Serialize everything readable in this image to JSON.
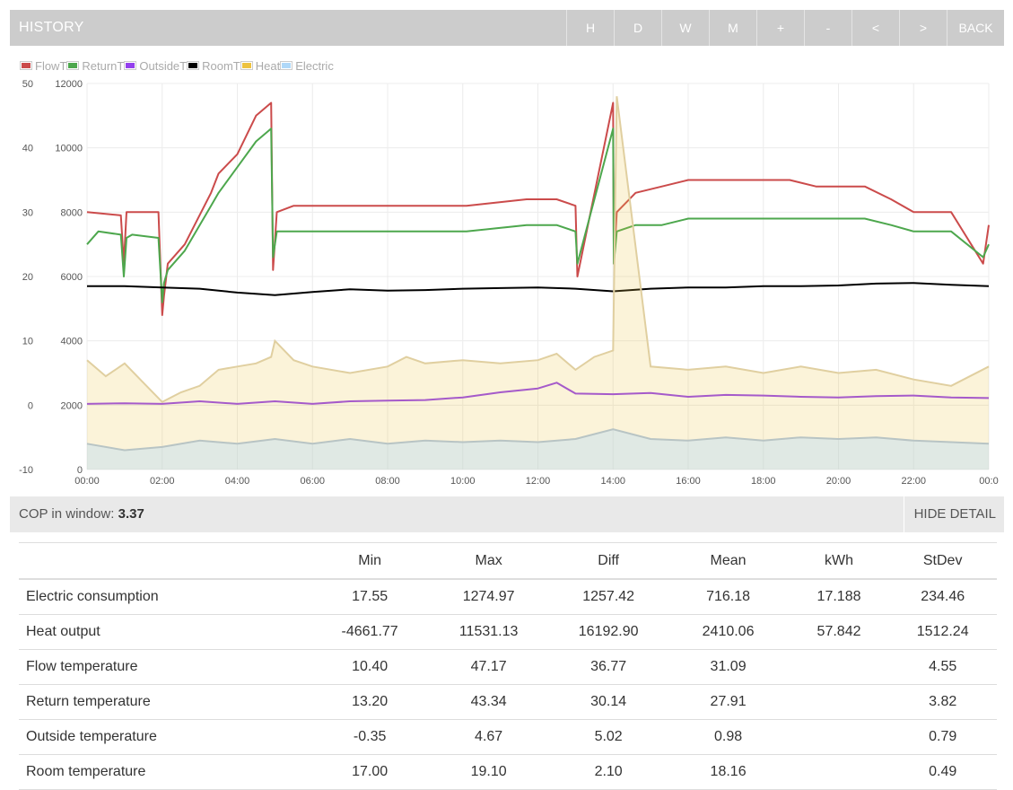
{
  "header": {
    "title": "HISTORY",
    "buttons": [
      {
        "id": "hour",
        "label": "H"
      },
      {
        "id": "day",
        "label": "D"
      },
      {
        "id": "week",
        "label": "W"
      },
      {
        "id": "month",
        "label": "M"
      },
      {
        "id": "zoom-in",
        "label": "+"
      },
      {
        "id": "zoom-out",
        "label": "-"
      },
      {
        "id": "pan-left",
        "label": "<"
      },
      {
        "id": "pan-right",
        "label": ">"
      },
      {
        "id": "back",
        "label": "BACK"
      }
    ]
  },
  "legend": [
    {
      "label": "FlowT",
      "color": "#cb4b4b"
    },
    {
      "label": "ReturnT",
      "color": "#4da74d"
    },
    {
      "label": "OutsideT",
      "color": "#9440ed"
    },
    {
      "label": "RoomT",
      "color": "#000000"
    },
    {
      "label": "Heat",
      "color": "#edc240"
    },
    {
      "label": "Electric",
      "color": "#afd8f8"
    }
  ],
  "chart_data": {
    "type": "line",
    "x_ticks": [
      "00:00",
      "02:00",
      "04:00",
      "06:00",
      "08:00",
      "10:00",
      "12:00",
      "14:00",
      "16:00",
      "18:00",
      "20:00",
      "22:00",
      "00:0"
    ],
    "x_hours": [
      0,
      2,
      4,
      6,
      8,
      10,
      12,
      14,
      16,
      18,
      20,
      22,
      24
    ],
    "y_left": {
      "ticks": [
        "50",
        "40",
        "30",
        "20",
        "10",
        "0",
        "-10"
      ],
      "range": [
        -10,
        50
      ]
    },
    "y_right": {
      "ticks": [
        "12000",
        "10000",
        "8000",
        "6000",
        "4000",
        "2000",
        "0"
      ],
      "range": [
        0,
        12000
      ]
    },
    "grid": true,
    "legend_position": "top-left",
    "series": [
      {
        "name": "FlowT",
        "axis": "left",
        "color": "#cb4b4b",
        "x": [
          0,
          0.9,
          0.98,
          1.05,
          1.2,
          1.9,
          2.0,
          2.05,
          2.15,
          2.6,
          3.3,
          3.5,
          4.0,
          4.5,
          4.9,
          4.95,
          5.05,
          5.5,
          6.0,
          6.6,
          7.0,
          7.8,
          8.6,
          9.3,
          10.1,
          10.9,
          11.7,
          12.5,
          13.0,
          13.05,
          14.0,
          14.02,
          14.1,
          14.6,
          15.3,
          16.0,
          16.7,
          17.4,
          18.0,
          18.7,
          19.4,
          20.0,
          20.7,
          21.4,
          22.0,
          23.0,
          23.85,
          24
        ],
        "y": [
          30,
          29.5,
          22,
          30,
          30,
          30,
          14,
          17,
          22,
          25,
          33,
          36,
          39,
          45,
          47,
          21,
          30,
          31,
          31,
          31,
          31,
          31,
          31,
          31,
          31,
          31.5,
          32,
          32,
          31,
          20,
          47,
          22,
          30,
          33,
          34,
          35,
          35,
          35,
          35,
          35,
          34,
          34,
          34,
          32,
          30,
          30,
          22,
          28
        ]
      },
      {
        "name": "ReturnT",
        "axis": "left",
        "color": "#4da74d",
        "x": [
          0,
          0.3,
          0.9,
          0.98,
          1.05,
          1.2,
          1.9,
          2.0,
          2.05,
          2.15,
          2.6,
          3.3,
          3.5,
          4.0,
          4.5,
          4.9,
          4.95,
          5.05,
          5.5,
          6.0,
          6.6,
          7.0,
          7.8,
          8.6,
          9.3,
          10.1,
          10.9,
          11.7,
          12.5,
          13.0,
          13.05,
          14.0,
          14.02,
          14.1,
          14.6,
          15.3,
          16.0,
          16.7,
          17.4,
          18.0,
          18.7,
          19.4,
          20.0,
          20.7,
          21.4,
          22.0,
          23.0,
          23.85,
          24
        ],
        "y": [
          25,
          27,
          26.5,
          20,
          26,
          26.5,
          26,
          16,
          19,
          21,
          24,
          31,
          33,
          37,
          41,
          43,
          23,
          27,
          27,
          27,
          27,
          27,
          27,
          27,
          27,
          27,
          27.5,
          28,
          28,
          27,
          22,
          43,
          22,
          27,
          28,
          28,
          29,
          29,
          29,
          29,
          29,
          29,
          29,
          29,
          28,
          27,
          27,
          23,
          25
        ]
      },
      {
        "name": "OutsideT",
        "axis": "left",
        "color": "#9440ed",
        "x": [
          0,
          1,
          2,
          3,
          4,
          5,
          6,
          7,
          8,
          9,
          10,
          11,
          12,
          12.5,
          13,
          14,
          15,
          16,
          17,
          18,
          19,
          20,
          21,
          22,
          23,
          24
        ],
        "y": [
          0.2,
          0.3,
          0.2,
          0.6,
          0.2,
          0.6,
          0.2,
          0.6,
          0.7,
          0.8,
          1.2,
          2.0,
          2.6,
          3.5,
          1.8,
          1.7,
          1.9,
          1.3,
          1.6,
          1.5,
          1.3,
          1.2,
          1.4,
          1.5,
          1.2,
          1.1
        ]
      },
      {
        "name": "RoomT",
        "axis": "left",
        "color": "#000000",
        "x": [
          0,
          1,
          2,
          3,
          4,
          5,
          6,
          7,
          8,
          9,
          10,
          11,
          12,
          13,
          14,
          15,
          16,
          17,
          18,
          19,
          20,
          21,
          22,
          23,
          24
        ],
        "y": [
          18.5,
          18.5,
          18.3,
          18.1,
          17.5,
          17.1,
          17.6,
          18.0,
          17.8,
          17.9,
          18.1,
          18.2,
          18.3,
          18.1,
          17.7,
          18.1,
          18.3,
          18.3,
          18.5,
          18.5,
          18.6,
          18.9,
          19.0,
          18.7,
          18.5
        ]
      },
      {
        "name": "Heat",
        "axis": "right",
        "color": "#edc240",
        "x": [
          0,
          0.5,
          1.0,
          1.5,
          2.0,
          2.5,
          3.0,
          3.5,
          4.0,
          4.5,
          4.9,
          5.0,
          5.5,
          6.0,
          7.0,
          8.0,
          8.5,
          9.0,
          10.0,
          11.0,
          12.0,
          12.5,
          13.0,
          13.5,
          14.0,
          14.1,
          15.0,
          16.0,
          17.0,
          18.0,
          19.0,
          20.0,
          21.0,
          22.0,
          23.0,
          24
        ],
        "y": [
          3400,
          2900,
          3300,
          2700,
          2100,
          2400,
          2600,
          3100,
          3200,
          3300,
          3500,
          4000,
          3400,
          3200,
          3000,
          3200,
          3500,
          3300,
          3400,
          3300,
          3400,
          3600,
          3100,
          3500,
          3700,
          11600,
          3200,
          3100,
          3200,
          3000,
          3200,
          3000,
          3100,
          2800,
          2600,
          3200
        ]
      },
      {
        "name": "Electric",
        "axis": "right",
        "color": "#afd8f8",
        "x": [
          0,
          1,
          2,
          3,
          4,
          5,
          6,
          7,
          8,
          9,
          10,
          11,
          12,
          13,
          14,
          15,
          16,
          17,
          18,
          19,
          20,
          21,
          22,
          23,
          24
        ],
        "y": [
          800,
          600,
          700,
          900,
          800,
          950,
          800,
          950,
          800,
          900,
          850,
          900,
          850,
          950,
          1250,
          950,
          900,
          1000,
          900,
          1000,
          950,
          1000,
          900,
          850,
          800
        ]
      }
    ]
  },
  "status": {
    "cop_label": "COP in window:",
    "cop_value": "3.37",
    "hide_detail_label": "HIDE DETAIL"
  },
  "table": {
    "headers": [
      "",
      "Min",
      "Max",
      "Diff",
      "Mean",
      "kWh",
      "StDev"
    ],
    "rows": [
      [
        "Electric consumption",
        "17.55",
        "1274.97",
        "1257.42",
        "716.18",
        "17.188",
        "234.46"
      ],
      [
        "Heat output",
        "-4661.77",
        "11531.13",
        "16192.90",
        "2410.06",
        "57.842",
        "1512.24"
      ],
      [
        "Flow temperature",
        "10.40",
        "47.17",
        "36.77",
        "31.09",
        "",
        "4.55"
      ],
      [
        "Return temperature",
        "13.20",
        "43.34",
        "30.14",
        "27.91",
        "",
        "3.82"
      ],
      [
        "Outside temperature",
        "-0.35",
        "4.67",
        "5.02",
        "0.98",
        "",
        "0.79"
      ],
      [
        "Room temperature",
        "17.00",
        "19.10",
        "2.10",
        "18.16",
        "",
        "0.49"
      ]
    ]
  }
}
